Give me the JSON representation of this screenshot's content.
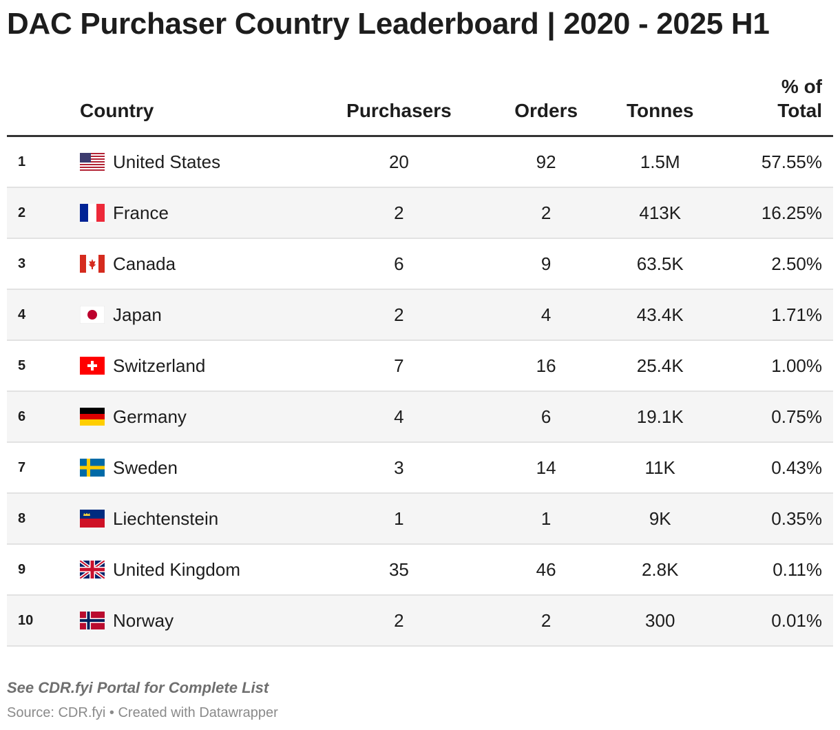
{
  "chart_data": {
    "type": "table",
    "title": "DAC Purchaser Country Leaderboard | 2020 - 2025 H1",
    "columns": [
      "",
      "Country",
      "Purchasers",
      "Orders",
      "Tonnes",
      "% of Total"
    ],
    "rows": [
      {
        "rank": "1",
        "country": "United States",
        "flag": "flag-us-icon",
        "purchasers": "20",
        "orders": "92",
        "tonnes": "1.5M",
        "pct": "57.55%"
      },
      {
        "rank": "2",
        "country": "France",
        "flag": "flag-fr-icon",
        "purchasers": "2",
        "orders": "2",
        "tonnes": "413K",
        "pct": "16.25%"
      },
      {
        "rank": "3",
        "country": "Canada",
        "flag": "flag-ca-icon",
        "purchasers": "6",
        "orders": "9",
        "tonnes": "63.5K",
        "pct": "2.50%"
      },
      {
        "rank": "4",
        "country": "Japan",
        "flag": "flag-jp-icon",
        "purchasers": "2",
        "orders": "4",
        "tonnes": "43.4K",
        "pct": "1.71%"
      },
      {
        "rank": "5",
        "country": "Switzerland",
        "flag": "flag-ch-icon",
        "purchasers": "7",
        "orders": "16",
        "tonnes": "25.4K",
        "pct": "1.00%"
      },
      {
        "rank": "6",
        "country": "Germany",
        "flag": "flag-de-icon",
        "purchasers": "4",
        "orders": "6",
        "tonnes": "19.1K",
        "pct": "0.75%"
      },
      {
        "rank": "7",
        "country": "Sweden",
        "flag": "flag-se-icon",
        "purchasers": "3",
        "orders": "14",
        "tonnes": "11K",
        "pct": "0.43%"
      },
      {
        "rank": "8",
        "country": "Liechtenstein",
        "flag": "flag-li-icon",
        "purchasers": "1",
        "orders": "1",
        "tonnes": "9K",
        "pct": "0.35%"
      },
      {
        "rank": "9",
        "country": "United Kingdom",
        "flag": "flag-gb-icon",
        "purchasers": "35",
        "orders": "46",
        "tonnes": "2.8K",
        "pct": "0.11%"
      },
      {
        "rank": "10",
        "country": "Norway",
        "flag": "flag-no-icon",
        "purchasers": "2",
        "orders": "2",
        "tonnes": "300",
        "pct": "0.01%"
      }
    ]
  },
  "header": {
    "country": "Country",
    "purchasers": "Purchasers",
    "orders": "Orders",
    "tonnes": "Tonnes",
    "pct_line1": "% of",
    "pct_line2": "Total"
  },
  "footer": {
    "note": "See CDR.fyi Portal for Complete List",
    "source": "Source: CDR.fyi • Created with Datawrapper"
  },
  "colors": {
    "header_rule": "#333333",
    "row_alt": "#f5f5f5",
    "row_divider": "#e2e2e2",
    "note": "#6f6f6f",
    "source": "#8a8a8a"
  }
}
